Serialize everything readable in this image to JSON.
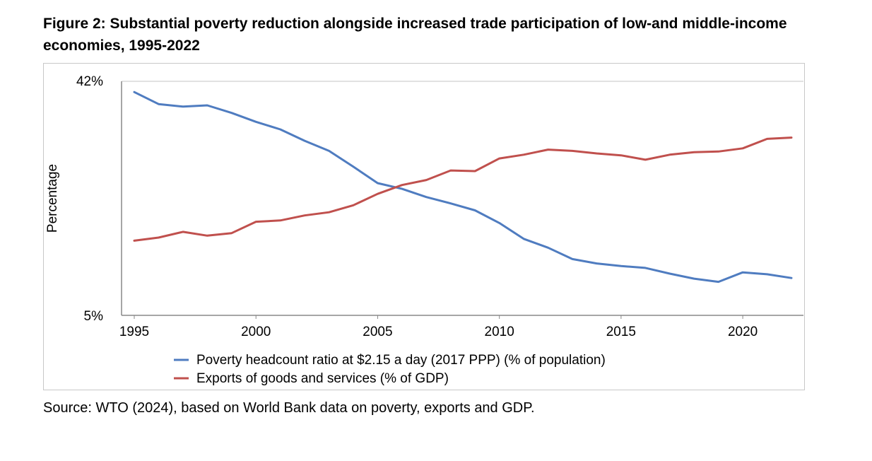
{
  "title": "Figure 2: Substantial poverty reduction alongside increased trade participation of low-and middle-income economies, 1995-2022",
  "source": "Source: WTO (2024), based on World Bank data on poverty, exports and GDP.",
  "colors": {
    "poverty": "#4f7cc0",
    "exports": "#c0504d",
    "axis": "#888888",
    "grid": "#d9d9d9"
  },
  "chart_data": {
    "type": "line",
    "ylabel": "Percentage",
    "xlabel": "",
    "ylim": [
      5,
      42
    ],
    "xlim": [
      1995,
      2022
    ],
    "y_tick_labels": [
      "42%",
      "5%"
    ],
    "x_ticks": [
      1995,
      2000,
      2005,
      2010,
      2015,
      2020
    ],
    "grid": "top gridline only",
    "legend": "bottom",
    "x": [
      1995,
      1996,
      1997,
      1998,
      1999,
      2000,
      2001,
      2002,
      2003,
      2004,
      2005,
      2006,
      2007,
      2008,
      2009,
      2010,
      2011,
      2012,
      2013,
      2014,
      2015,
      2016,
      2017,
      2018,
      2019,
      2020,
      2021,
      2022
    ],
    "series": [
      {
        "name": "Poverty headcount ratio at $2.15 a day (2017 PPP) (% of population)",
        "values": [
          40.3,
          38.4,
          38.0,
          38.2,
          37.0,
          35.6,
          34.4,
          32.6,
          31.0,
          28.5,
          25.9,
          25.0,
          23.7,
          22.7,
          21.6,
          19.6,
          17.1,
          15.7,
          13.9,
          13.2,
          12.8,
          12.5,
          11.6,
          10.8,
          10.3,
          11.8,
          11.5,
          10.9
        ]
      },
      {
        "name": "Exports of goods and services (% of GDP)",
        "values": [
          16.8,
          17.3,
          18.2,
          17.6,
          18.0,
          19.8,
          20.0,
          20.8,
          21.3,
          22.4,
          24.2,
          25.6,
          26.4,
          27.9,
          27.8,
          29.8,
          30.4,
          31.2,
          31.0,
          30.6,
          30.3,
          29.6,
          30.4,
          30.8,
          30.9,
          31.4,
          32.9,
          33.1
        ]
      }
    ]
  }
}
